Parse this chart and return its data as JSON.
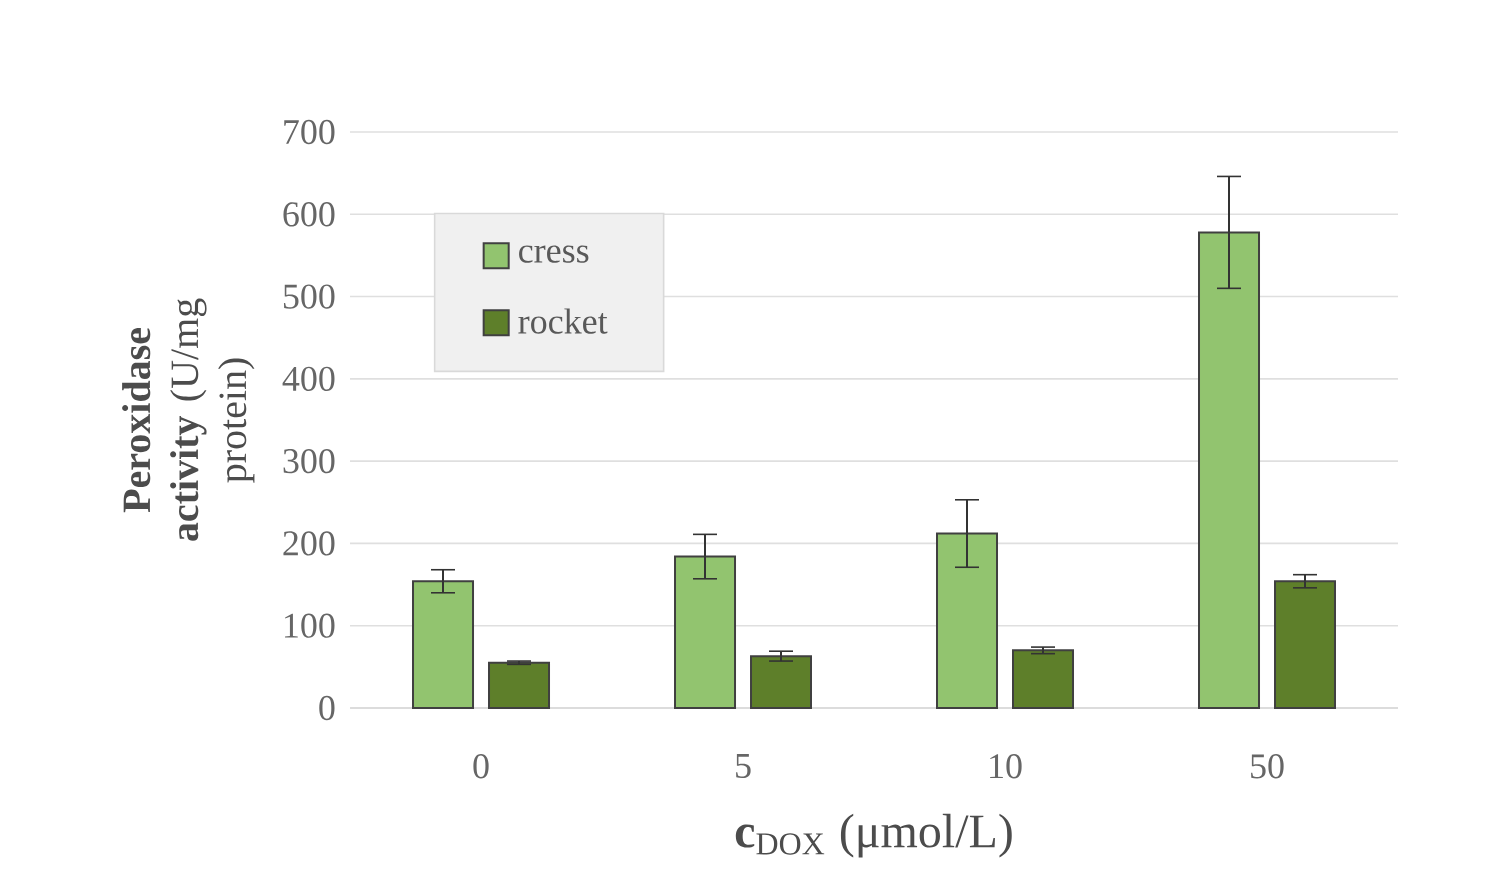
{
  "chart_data": {
    "type": "bar",
    "xlabel": "**c**$_{DOX}$ (μmol/L)",
    "ylabel": "**Peroxidase activity** (U/mg protein)",
    "categories": [
      "0",
      "5",
      "10",
      "50"
    ],
    "series": [
      {
        "name": "cress",
        "color": "#92c46f",
        "values": [
          154,
          184,
          212,
          578
        ],
        "errors": [
          14,
          27,
          41,
          68
        ]
      },
      {
        "name": "rocket",
        "color": "#5e7f2a",
        "values": [
          55,
          63,
          70,
          154
        ],
        "errors": [
          2,
          6,
          4,
          8
        ]
      }
    ],
    "ylim": [
      0,
      700
    ],
    "yticks": [
      0,
      100,
      200,
      300,
      400,
      500,
      600,
      700
    ],
    "grid": "y",
    "legend": "top left"
  }
}
